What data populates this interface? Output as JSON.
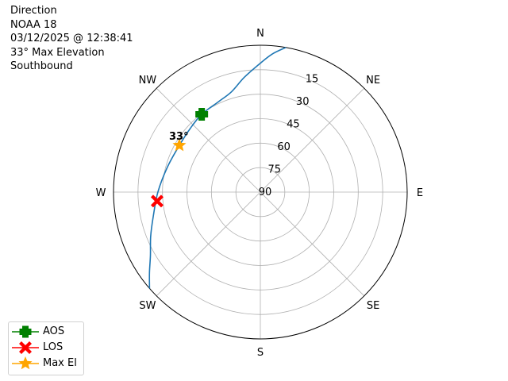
{
  "title_lines": [
    "Direction",
    "NOAA 18",
    "03/12/2025 @ 12:38:41",
    "33° Max Elevation",
    "Southbound"
  ],
  "chart_data": {
    "type": "polar",
    "theta_zero": "N",
    "theta_direction": "clockwise",
    "r_axis": "elevation (90 at center, 0 at edge)",
    "azimuth_labels": [
      "N",
      "NE",
      "E",
      "SE",
      "S",
      "SW",
      "W",
      "NW"
    ],
    "radial_ticks": [
      15,
      30,
      45,
      60,
      75,
      90
    ],
    "grid": true,
    "track": {
      "color": "#1f77b4",
      "points": [
        [
          10,
          0
        ],
        [
          5,
          5
        ],
        [
          0,
          11
        ],
        [
          352,
          19
        ],
        [
          344,
          26
        ],
        [
          335,
          29
        ],
        [
          323,
          30.3
        ],
        [
          312,
          32
        ],
        [
          300,
          32.7
        ],
        [
          285,
          31
        ],
        [
          270,
          27.2
        ],
        [
          257,
          22.6
        ],
        [
          248,
          17.5
        ],
        [
          240,
          12.2
        ],
        [
          234,
          6
        ],
        [
          229,
          0
        ]
      ]
    },
    "markers": [
      {
        "name": "AOS",
        "az": 323,
        "el": 30.3,
        "color": "#008000",
        "shape": "plus"
      },
      {
        "name": "LOS",
        "az": 265,
        "el": 26.5,
        "color": "#ff0000",
        "shape": "x"
      },
      {
        "name": "Max El",
        "az": 300,
        "el": 32.7,
        "color": "#ffa500",
        "shape": "star"
      }
    ],
    "annotation": {
      "text": "33°",
      "az": 300,
      "el": 32.7
    },
    "legend_placement": "lower-left"
  }
}
